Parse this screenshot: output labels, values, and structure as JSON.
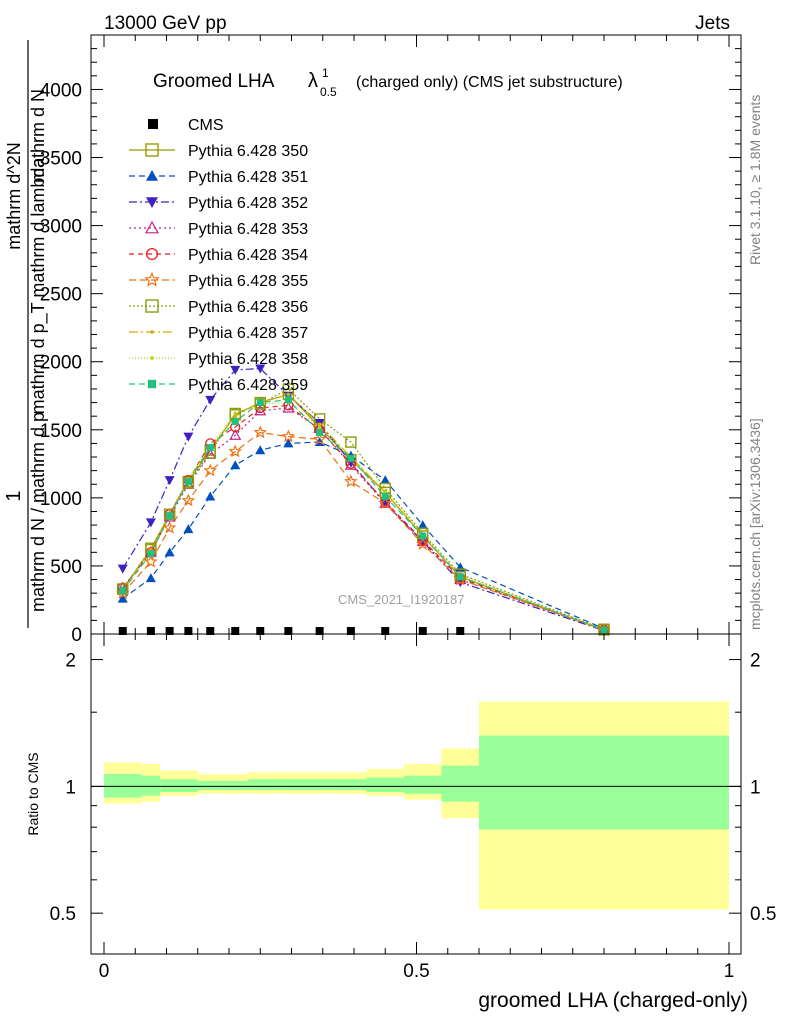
{
  "header": {
    "energy_label": "13000 GeV pp",
    "process_label": "Jets",
    "rivet_label": "Rivet 3.1.10, ≥ 1.8M events",
    "mcplots_label": "mcplots.cern.ch [arXiv:1306.3436]",
    "analysis_label": "CMS_2021_I1920187"
  },
  "chart_data": {
    "type": "line",
    "title_main": "Groomed LHA",
    "title_symbol": "λ",
    "title_sup": "1",
    "title_sub": "0.5",
    "title_rest": "(charged only) (CMS jet substructure)",
    "ylabel_num": "1",
    "ylabel_den_line1": "mathrm d N / mathrm d p",
    "ylabel_den_line2": "mathrm d N",
    "ylabel_den_line3": "mathrm d p_T mathrm d lambda",
    "ylabel_overlay": "mathrm d^2N",
    "xlabel": "groomed LHA (charged-only)",
    "ratio_ylabel": "Ratio to CMS",
    "xlim": [
      0,
      1
    ],
    "ylim": [
      0,
      4400
    ],
    "ratio_ylim": [
      0.4,
      2.3
    ],
    "y_ticks": [
      {
        "v": 0,
        "label": "0"
      },
      {
        "v": 500,
        "label": "500"
      },
      {
        "v": 1000,
        "label": "1000"
      },
      {
        "v": 1500,
        "label": "1500"
      },
      {
        "v": 2000,
        "label": "2000"
      },
      {
        "v": 2500,
        "label": "2500"
      },
      {
        "v": 3000,
        "label": "3000"
      },
      {
        "v": 3500,
        "label": "3500"
      },
      {
        "v": 4000,
        "label": "4000"
      }
    ],
    "x_ticks": [
      {
        "v": 0,
        "label": "0"
      },
      {
        "v": 0.5,
        "label": "0.5"
      },
      {
        "v": 1,
        "label": "1"
      }
    ],
    "ratio_ticks": [
      {
        "v": 0.5,
        "label": "0.5"
      },
      {
        "v": 1,
        "label": "1"
      },
      {
        "v": 2,
        "label": "2"
      }
    ],
    "x": [
      0.03,
      0.075,
      0.105,
      0.135,
      0.17,
      0.21,
      0.25,
      0.295,
      0.345,
      0.395,
      0.45,
      0.51,
      0.57,
      0.8
    ],
    "bin_edges": [
      0.0,
      0.06,
      0.09,
      0.12,
      0.15,
      0.19,
      0.23,
      0.27,
      0.32,
      0.37,
      0.42,
      0.48,
      0.54,
      0.6,
      1.0
    ],
    "cms": {
      "name": "CMS",
      "color": "#000000",
      "values": [
        2,
        2,
        2,
        2,
        2,
        2,
        2,
        2,
        2,
        2,
        2,
        2,
        2,
        2
      ]
    },
    "ratio_bands": {
      "yellow_color": "#ffff99",
      "green_color": "#99ff99",
      "yellow_low": [
        0.91,
        0.92,
        0.95,
        0.95,
        0.96,
        0.96,
        0.96,
        0.96,
        0.96,
        0.96,
        0.95,
        0.93,
        0.84,
        0.51
      ],
      "yellow_high": [
        1.14,
        1.13,
        1.09,
        1.09,
        1.07,
        1.07,
        1.08,
        1.08,
        1.08,
        1.08,
        1.1,
        1.13,
        1.23,
        1.59
      ],
      "green_low": [
        0.94,
        0.95,
        0.97,
        0.97,
        0.98,
        0.98,
        0.98,
        0.98,
        0.98,
        0.98,
        0.97,
        0.96,
        0.92,
        0.79
      ],
      "green_high": [
        1.07,
        1.06,
        1.04,
        1.04,
        1.03,
        1.03,
        1.04,
        1.04,
        1.04,
        1.04,
        1.05,
        1.06,
        1.12,
        1.32
      ]
    },
    "series": [
      {
        "name": "Pythia 6.428 350",
        "color": "#999900",
        "marker": "square-open",
        "dash": "",
        "values": [
          330,
          620,
          880,
          1120,
          1350,
          1610,
          1700,
          1760,
          1520,
          1280,
          1040,
          720,
          420,
          30
        ]
      },
      {
        "name": "Pythia 6.428 351",
        "color": "#0050c0",
        "marker": "triangle-up",
        "dash": "6,4",
        "values": [
          260,
          410,
          600,
          770,
          1010,
          1240,
          1350,
          1400,
          1410,
          1310,
          1130,
          800,
          490,
          40
        ]
      },
      {
        "name": "Pythia 6.428 352",
        "color": "#4020c0",
        "marker": "triangle-down",
        "dash": "8,3,2,3",
        "values": [
          480,
          820,
          1130,
          1450,
          1720,
          1940,
          1950,
          1750,
          1550,
          1260,
          960,
          680,
          380,
          25
        ]
      },
      {
        "name": "Pythia 6.428 353",
        "color": "#c0208c",
        "marker": "triangle-open",
        "dash": "2,3",
        "values": [
          340,
          600,
          860,
          1100,
          1320,
          1460,
          1640,
          1660,
          1510,
          1240,
          960,
          680,
          400,
          30
        ]
      },
      {
        "name": "Pythia 6.428 354",
        "color": "#e02020",
        "marker": "circle-open",
        "dash": "5,4",
        "values": [
          340,
          600,
          880,
          1130,
          1400,
          1520,
          1660,
          1680,
          1500,
          1250,
          970,
          690,
          410,
          30
        ]
      },
      {
        "name": "Pythia 6.428 355",
        "color": "#f07010",
        "marker": "star-open",
        "dash": "7,4",
        "values": [
          300,
          530,
          780,
          980,
          1200,
          1340,
          1480,
          1450,
          1430,
          1120,
          960,
          660,
          400,
          30
        ]
      },
      {
        "name": "Pythia 6.428 356",
        "color": "#8c9c10",
        "marker": "square-open",
        "dash": "2,2",
        "values": [
          330,
          630,
          880,
          1110,
          1330,
          1620,
          1690,
          1800,
          1580,
          1410,
          1070,
          740,
          440,
          35
        ]
      },
      {
        "name": "Pythia 6.428 357",
        "color": "#d0b000",
        "marker": "dot",
        "dash": "9,3,2,3",
        "values": [
          330,
          620,
          880,
          1140,
          1360,
          1600,
          1700,
          1760,
          1540,
          1300,
          1040,
          720,
          420,
          30
        ]
      },
      {
        "name": "Pythia 6.428 358",
        "color": "#b8d010",
        "marker": "dot",
        "dash": "1,2",
        "values": [
          320,
          600,
          860,
          1140,
          1380,
          1620,
          1690,
          1700,
          1520,
          1300,
          1050,
          730,
          430,
          30
        ]
      },
      {
        "name": "Pythia 6.428 359",
        "color": "#20c080",
        "marker": "square-filled",
        "dash": "6,4",
        "values": [
          320,
          590,
          870,
          1120,
          1370,
          1560,
          1700,
          1720,
          1480,
          1290,
          1010,
          720,
          420,
          30
        ]
      }
    ]
  }
}
